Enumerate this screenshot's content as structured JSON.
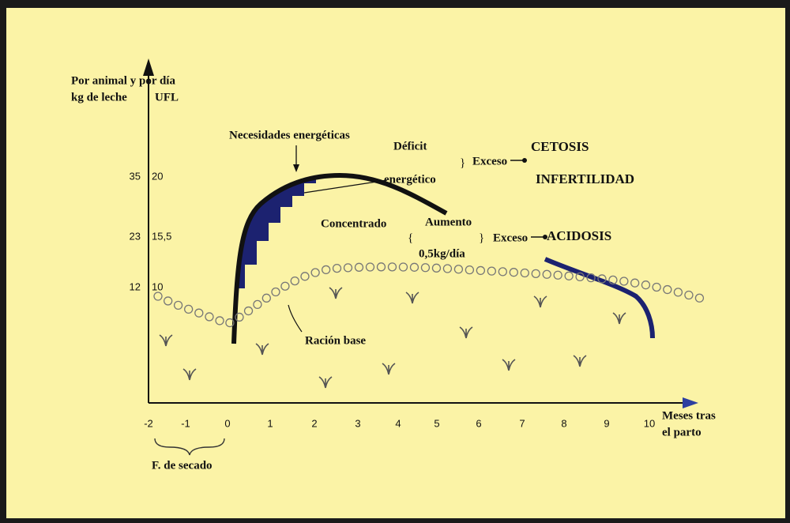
{
  "axis": {
    "y_title_1": "Por animal y por día",
    "y_title_2_left": "kg de leche",
    "y_title_2_right": "UFL",
    "x_title_1": "Meses tras",
    "x_title_2": "el parto",
    "x_ticks": [
      "-2",
      "-1",
      "0",
      "1",
      "2",
      "3",
      "4",
      "5",
      "6",
      "7",
      "8",
      "9",
      "10"
    ],
    "y_ticks": [
      {
        "milk": "35",
        "ufl": "20"
      },
      {
        "milk": "23",
        "ufl": "15,5"
      },
      {
        "milk": "12",
        "ufl": "10"
      }
    ]
  },
  "labels": {
    "needs": "Necesidades energéticas",
    "deficit_1": "Déficit",
    "deficit_2": "energético",
    "excess_1": "Exceso",
    "ketosis": "CETOSIS",
    "infertility": "INFERTILIDAD",
    "concentrate": "Concentrado",
    "increase_1": "Aumento",
    "increase_2": "0,5kg/día",
    "excess_2": "Exceso",
    "acidosis": "ACIDOSIS",
    "base_ration": "Ración base",
    "dry_period": "F. de secado"
  }
}
